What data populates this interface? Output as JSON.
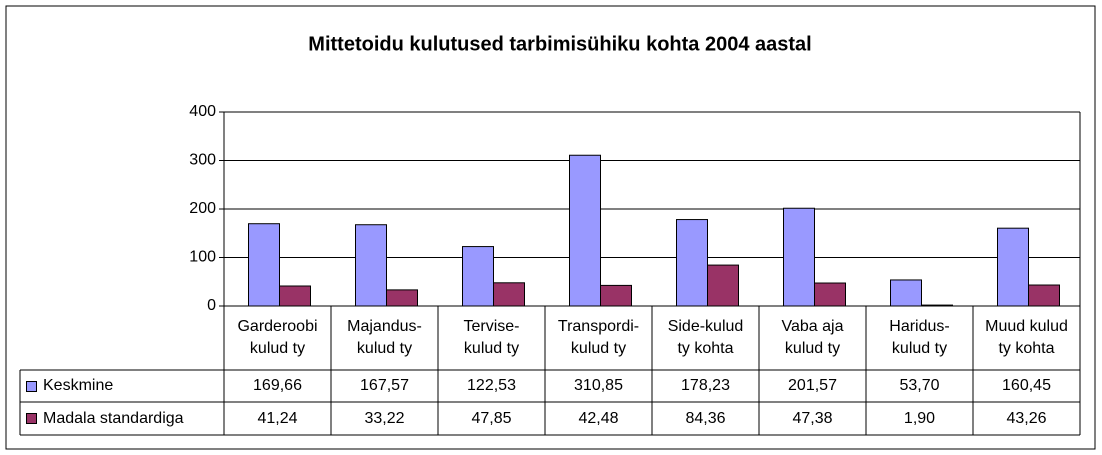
{
  "chart_data": {
    "type": "bar",
    "title": "Mittetoidu kulutused tarbimisühiku kohta 2004 aastal",
    "categories": [
      "Garderoobi\nkulud ty",
      "Majandus-\nkulud ty",
      "Tervise-\nkulud ty",
      "Transpordi-\nkulud ty",
      "Side-kulud\nty kohta",
      "Vaba aja\nkulud ty",
      "Haridus-\nkulud ty",
      "Muud kulud\nty kohta"
    ],
    "series": [
      {
        "name": "Keskmine",
        "color": "#9999ff",
        "values": [
          169.66,
          167.57,
          122.53,
          310.85,
          178.23,
          201.57,
          53.7,
          160.45
        ],
        "value_labels": [
          "169,66",
          "167,57",
          "122,53",
          "310,85",
          "178,23",
          "201,57",
          "53,70",
          "160,45"
        ]
      },
      {
        "name": "Madala standardiga",
        "color": "#993366",
        "values": [
          41.24,
          33.22,
          47.85,
          42.48,
          84.36,
          47.38,
          1.9,
          43.26
        ],
        "value_labels": [
          "41,24",
          "33,22",
          "47,85",
          "42,48",
          "84,36",
          "47,38",
          "1,90",
          "43,26"
        ]
      }
    ],
    "ylim": [
      0,
      400
    ],
    "yticks": [
      0,
      100,
      200,
      300,
      400
    ],
    "grid": true
  }
}
